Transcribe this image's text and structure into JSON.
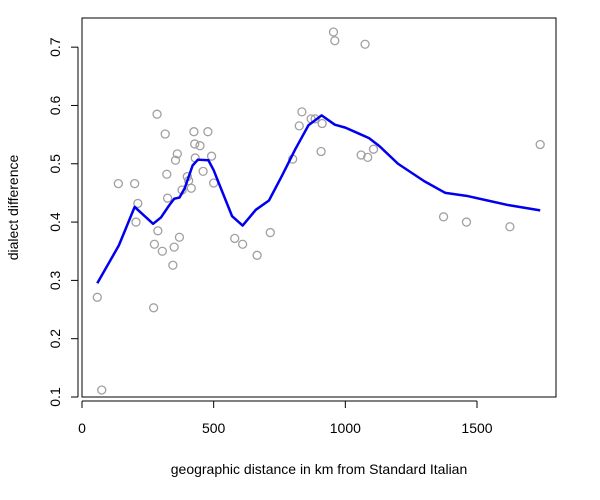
{
  "chart_data": {
    "type": "scatter",
    "title": "",
    "xlabel": "geographic distance in km from Standard Italian",
    "ylabel": "dialect difference",
    "xlim": [
      0,
      1800
    ],
    "ylim": [
      0.1,
      0.75
    ],
    "xticks": [
      0,
      500,
      1000,
      1500
    ],
    "xtick_labels": [
      "0",
      "500",
      "1000",
      "1500"
    ],
    "yticks": [
      0.1,
      0.2,
      0.3,
      0.4,
      0.5,
      0.6,
      0.7
    ],
    "ytick_labels": [
      "0.1",
      "0.2",
      "0.3",
      "0.4",
      "0.5",
      "0.6",
      "0.7"
    ],
    "grid": false,
    "colors": {
      "points": "#a0a0a0",
      "smooth_line": "#0000ee"
    },
    "series": [
      {
        "kind": "points",
        "x": [
          58,
          75,
          138,
          200,
          205,
          212,
          272,
          275,
          285,
          288,
          305,
          316,
          322,
          325,
          345,
          350,
          355,
          362,
          370,
          380,
          400,
          405,
          415,
          425,
          428,
          430,
          448,
          460,
          478,
          492,
          500,
          580,
          610,
          665,
          715,
          800,
          825,
          835,
          870,
          885,
          912,
          908,
          955,
          960,
          1060,
          1075,
          1085,
          1107,
          1373,
          1460,
          1625,
          1740
        ],
        "y": [
          0.271,
          0.112,
          0.466,
          0.466,
          0.4,
          0.432,
          0.253,
          0.362,
          0.585,
          0.385,
          0.35,
          0.551,
          0.482,
          0.441,
          0.326,
          0.357,
          0.506,
          0.517,
          0.374,
          0.455,
          0.478,
          0.471,
          0.458,
          0.555,
          0.534,
          0.51,
          0.531,
          0.487,
          0.555,
          0.513,
          0.467,
          0.372,
          0.362,
          0.343,
          0.382,
          0.508,
          0.565,
          0.589,
          0.577,
          0.577,
          0.569,
          0.521,
          0.726,
          0.711,
          0.515,
          0.705,
          0.511,
          0.525,
          0.409,
          0.4,
          0.392,
          0.533
        ]
      },
      {
        "kind": "smooth_line",
        "x": [
          58,
          140,
          200,
          270,
          300,
          330,
          350,
          370,
          390,
          420,
          440,
          480,
          500,
          530,
          570,
          610,
          660,
          710,
          760,
          810,
          860,
          910,
          960,
          1000,
          1050,
          1090,
          1130,
          1200,
          1300,
          1380,
          1460,
          1540,
          1620,
          1740
        ],
        "y": [
          0.295,
          0.36,
          0.426,
          0.397,
          0.408,
          0.428,
          0.44,
          0.442,
          0.458,
          0.497,
          0.507,
          0.506,
          0.489,
          0.455,
          0.41,
          0.394,
          0.421,
          0.437,
          0.48,
          0.525,
          0.566,
          0.583,
          0.567,
          0.562,
          0.552,
          0.544,
          0.53,
          0.5,
          0.47,
          0.45,
          0.445,
          0.437,
          0.429,
          0.42
        ]
      }
    ]
  }
}
